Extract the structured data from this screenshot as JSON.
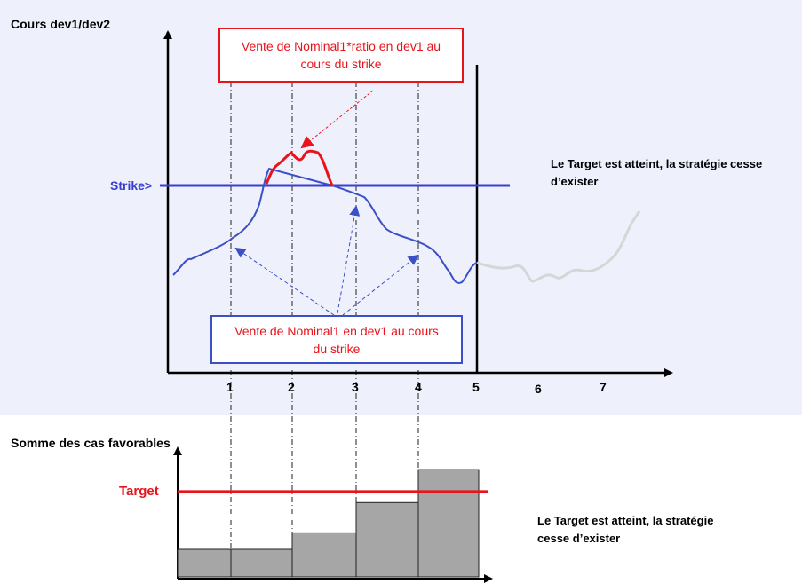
{
  "top_chart": {
    "y_axis_label": "Cours dev1/dev2",
    "strike_label": "Strike>",
    "x_ticks": [
      "1",
      "2",
      "3",
      "4",
      "5",
      "6",
      "7"
    ],
    "note": "Le Target est atteint, la stratégie cesse d’exister",
    "callout_red": "Vente de Nominal1*ratio en dev1 au cours du strike",
    "callout_blue": "Vente de Nominal1 en dev1 au cours du strike"
  },
  "bottom_chart": {
    "title": "Somme des cas favorables",
    "target_label": "Target",
    "note": "Le Target est atteint, la stratégie cesse d’exister"
  },
  "colors": {
    "panel_bg": "#eef0fb",
    "strike": "#3b3fd0",
    "price_line": "#3b4fc8",
    "red": "#e8141c",
    "bar_fill": "#a6a6a6",
    "faded_path": "#d6d6d6"
  },
  "chart_data": {
    "type": "bar",
    "categories": [
      "1",
      "2",
      "3",
      "4",
      "5"
    ],
    "values": [
      1,
      1,
      1.6,
      2.7,
      3.9
    ],
    "target": 3.1,
    "xlabel": "",
    "ylabel": "Somme des cas favorables"
  }
}
